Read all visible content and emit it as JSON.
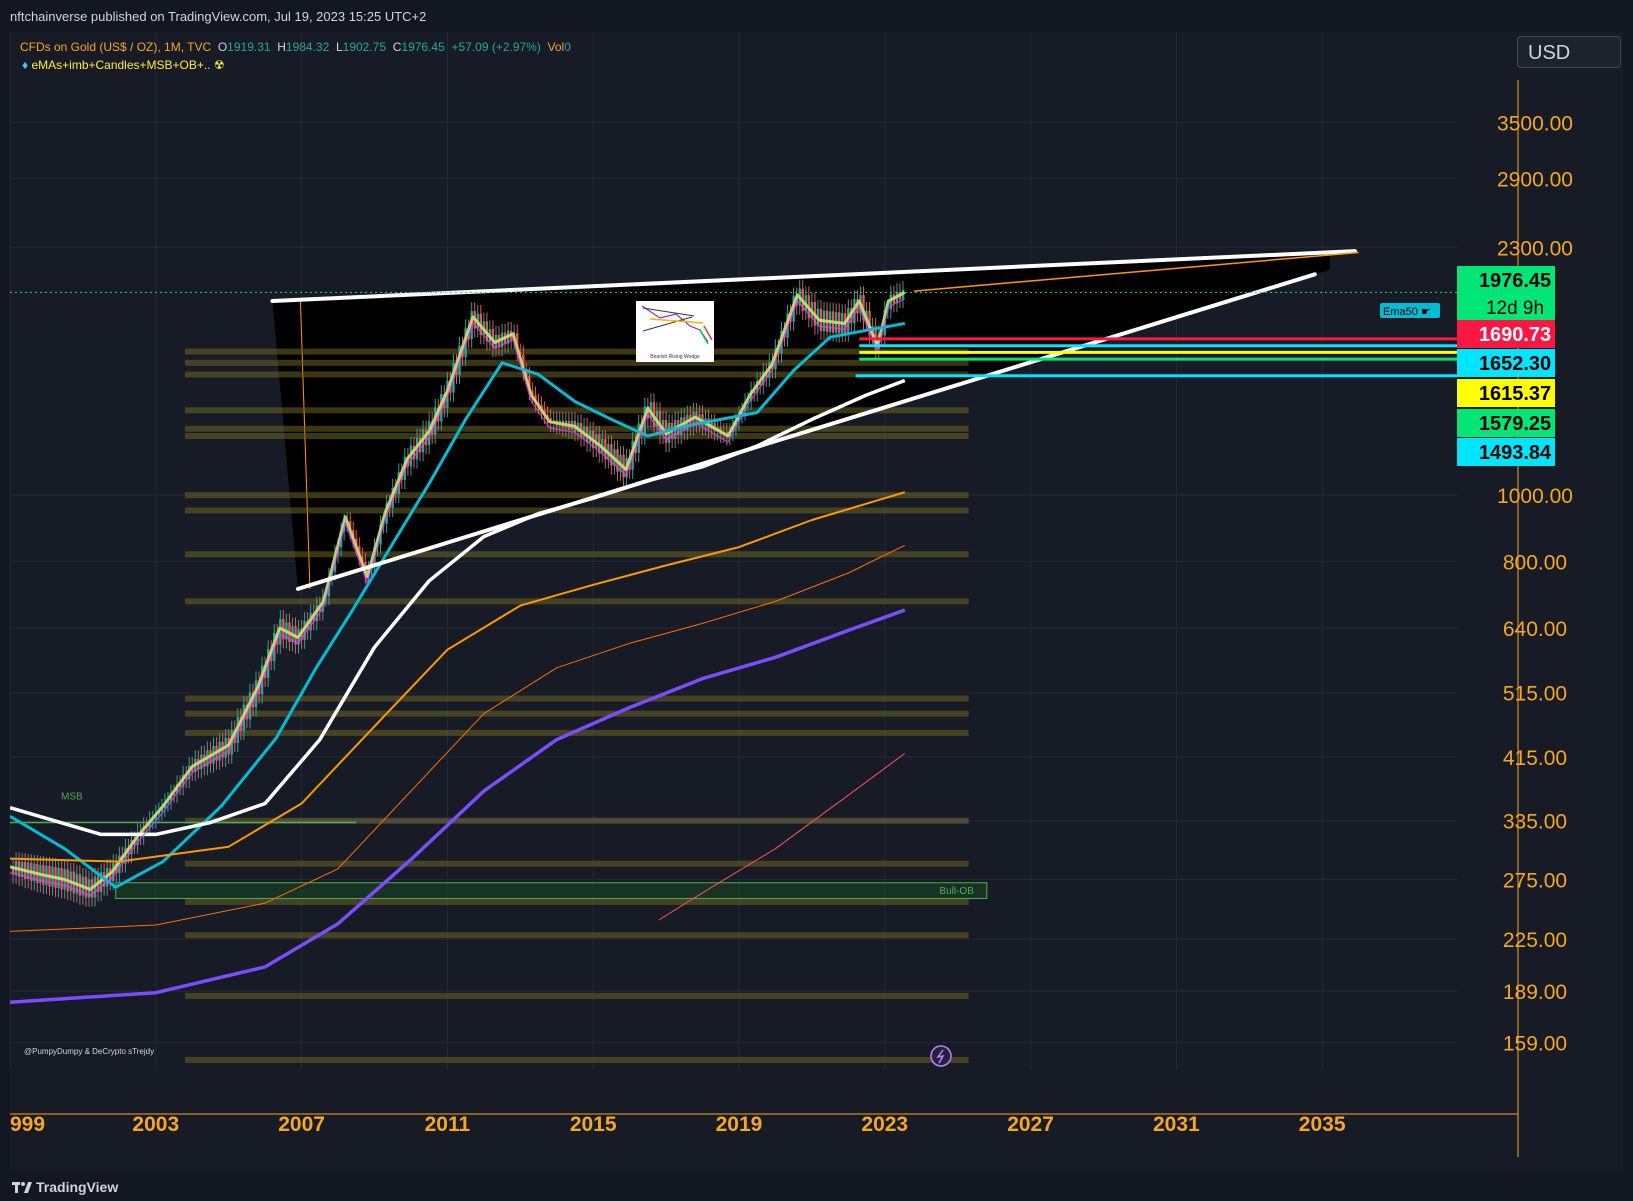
{
  "publisher_line": "nftchainverse published on TradingView.com, Jul 19, 2023 15:25 UTC+2",
  "legend": {
    "symbol": "CFDs on Gold (US$ / OZ), 1M, TVC",
    "open_label": "O",
    "open": "1919.31",
    "high_label": "H",
    "high": "1984.32",
    "low_label": "L",
    "low": "1902.75",
    "close_label": "C",
    "close": "1976.45",
    "change": "+57.09 (+2.97%)",
    "vol_label": "Vol",
    "vol": "0",
    "indicator": "eMAs+imb+Candles+MSB+OB+.."
  },
  "currency": "USD",
  "brand": "TradingView",
  "watermark": "@PumpyDumpy & DeCrypto sTrejdy",
  "annotations": {
    "msb": "MSB",
    "bull_ob": "Bull-OB",
    "ema_tag": "Ema50",
    "inset_caption": "Bearish Rising Wedge"
  },
  "price_tags": [
    {
      "value": "1976.45",
      "sub": "12d 9h",
      "bg": "#00e676",
      "fg": "#000000"
    },
    {
      "value": "1690.73",
      "bg": "#ff1744",
      "fg": "#ffffff"
    },
    {
      "value": "1652.30",
      "bg": "#00e5ff",
      "fg": "#000000"
    },
    {
      "value": "1615.37",
      "bg": "#ffff00",
      "fg": "#000000"
    },
    {
      "value": "1579.25",
      "bg": "#00e676",
      "fg": "#000000"
    },
    {
      "value": "1493.84",
      "bg": "#00e5ff",
      "fg": "#000000"
    }
  ],
  "chart_data": {
    "type": "line",
    "title": "CFDs on Gold (US$ / OZ), 1M, TVC",
    "xlabel": "",
    "ylabel": "",
    "y_scale": "log",
    "ylim": [
      145,
      4200
    ],
    "xlim": [
      1999,
      2038.7
    ],
    "y_ticks": [
      "3500.00",
      "2900.00",
      "2300.00",
      "1000.00",
      "800.00",
      "640.00",
      "515.00",
      "415.00",
      "335.00",
      "275.00",
      "225.00",
      "189.00",
      "159.00"
    ],
    "x_ticks": [
      "999",
      "2003",
      "2007",
      "2011",
      "2015",
      "2019",
      "2023",
      "2027",
      "2031",
      "2035"
    ],
    "series": [
      {
        "color": "#26a69a",
        "x": [
          1999.0,
          1999.8,
          2000.5,
          2001.2,
          2001.8,
          2002.5,
          2003.2,
          2004.0,
          2005.0,
          2005.8,
          2006.4,
          2006.9,
          2007.6,
          2008.2,
          2008.8,
          2009.3,
          2009.9,
          2010.5,
          2011.0,
          2011.7,
          2012.3,
          2012.8,
          2013.3,
          2013.8,
          2014.5,
          2015.2,
          2015.9,
          2016.5,
          2017.0,
          2017.8,
          2018.7,
          2019.3,
          2019.9,
          2020.6,
          2021.2,
          2021.9,
          2022.3,
          2022.8,
          2023.1,
          2023.55
        ],
        "values": [
          287,
          280,
          275,
          266,
          282,
          318,
          352,
          402,
          432,
          525,
          640,
          620,
          700,
          930,
          760,
          945,
          1130,
          1240,
          1420,
          1820,
          1670,
          1720,
          1400,
          1280,
          1260,
          1180,
          1090,
          1340,
          1230,
          1300,
          1220,
          1400,
          1550,
          1960,
          1800,
          1780,
          1920,
          1650,
          1920,
          1976
        ]
      },
      {
        "color": "#00bcd4",
        "x": [
          1999.0,
          2000.5,
          2001.9,
          2003.2,
          2004.8,
          2006.3,
          2007.4,
          2008.4,
          2009.5,
          2010.5,
          2011.5,
          2012.5,
          2013.5,
          2014.5,
          2015.5,
          2016.5,
          2017.5,
          2018.5,
          2019.5,
          2020.5,
          2021.5,
          2022.5,
          2023.55
        ],
        "values": [
          340,
          305,
          268,
          292,
          352,
          442,
          560,
          680,
          850,
          1040,
          1290,
          1560,
          1500,
          1370,
          1290,
          1220,
          1260,
          1290,
          1320,
          1520,
          1700,
          1740,
          1780
        ]
      },
      {
        "color": "#ffffff",
        "x": [
          1999.0,
          2001.5,
          2003.0,
          2004.5,
          2006.0,
          2007.5,
          2009.0,
          2010.5,
          2012.0,
          2013.5,
          2015.0,
          2016.5,
          2018.0,
          2019.5,
          2021.0,
          2022.5,
          2023.55
        ],
        "values": [
          350,
          320,
          320,
          333,
          355,
          440,
          600,
          750,
          870,
          940,
          990,
          1050,
          1100,
          1180,
          1290,
          1400,
          1470
        ]
      },
      {
        "color": "#ff9800",
        "x": [
          1999.0,
          2002.0,
          2005.0,
          2007.0,
          2009.0,
          2011.0,
          2013.0,
          2015.0,
          2017.0,
          2019.0,
          2021.0,
          2023.55
        ],
        "values": [
          295,
          292,
          307,
          355,
          460,
          595,
          690,
          740,
          790,
          840,
          920,
          1010
        ]
      },
      {
        "color": "#ff6d00",
        "x": [
          1999.0,
          2003.0,
          2006.0,
          2008.0,
          2010.0,
          2012.0,
          2014.0,
          2016.0,
          2018.0,
          2020.0,
          2022.0,
          2023.55
        ],
        "values": [
          231,
          236,
          254,
          285,
          370,
          480,
          560,
          608,
          650,
          700,
          770,
          845
        ]
      },
      {
        "color": "#7c4dff",
        "x": [
          1999.0,
          2003.0,
          2006.0,
          2008.0,
          2010.0,
          2012.0,
          2014.0,
          2016.0,
          2018.0,
          2020.0,
          2022.0,
          2023.55
        ],
        "values": [
          182,
          188,
          205,
          237,
          294,
          370,
          440,
          490,
          540,
          580,
          635,
          680
        ]
      },
      {
        "color": "#ff5252",
        "x": [
          2016.8,
          2018.0,
          2020.0,
          2022.0,
          2023.55
        ],
        "values": [
          240,
          263,
          305,
          365,
          420
        ]
      }
    ],
    "trendlines": [
      {
        "name": "wedge-upper",
        "color": "#ffffff",
        "x": [
          2006.2,
          2035.9
        ],
        "values": [
          1920,
          2270
        ]
      },
      {
        "name": "wedge-lower",
        "color": "#ffffff",
        "x": [
          2006.9,
          2034.8
        ],
        "values": [
          730,
          2100
        ]
      }
    ],
    "levels": [
      {
        "color": "#ff1744",
        "value": 1690.73
      },
      {
        "color": "#00e5ff",
        "value": 1652.3
      },
      {
        "color": "#ffff00",
        "value": 1615.37
      },
      {
        "color": "#00e676",
        "value": 1579.25
      },
      {
        "color": "#00e5ff",
        "value": 1493.84
      }
    ]
  }
}
